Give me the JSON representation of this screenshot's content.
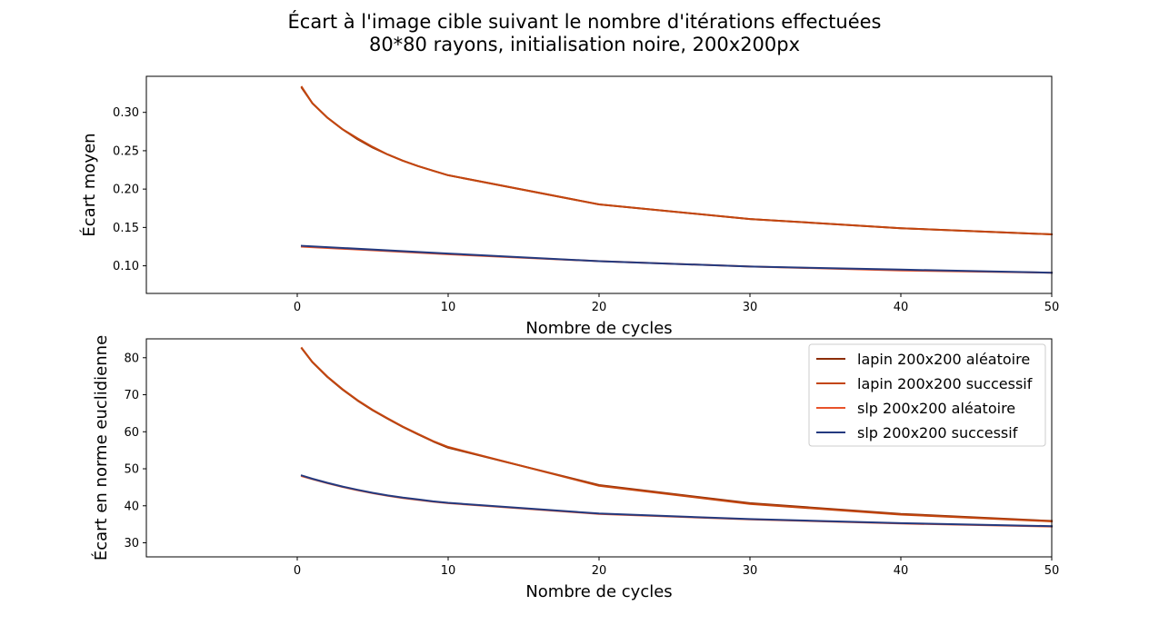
{
  "title": {
    "line1": "Écart à l'image cible suivant le nombre d'itérations effectuées",
    "line2": "80*80 rayons, initialisation noire, 200x200px"
  },
  "colors": {
    "lapin_aleatoire": "#8c2d04",
    "lapin_successif": "#c3460f",
    "slp_aleatoire": "#e8532a",
    "slp_successif": "#243a7f"
  },
  "chart_data": [
    {
      "type": "line",
      "xlabel": "Nombre de cycles",
      "ylabel": "Écart moyen",
      "xlim": [
        -10,
        50
      ],
      "ylim": [
        0.064,
        0.347
      ],
      "xticks": [
        0,
        10,
        20,
        30,
        40,
        50
      ],
      "yticks": [
        0.1,
        0.15,
        0.2,
        0.25,
        0.3
      ],
      "ytick_labels": [
        "0.10",
        "0.15",
        "0.20",
        "0.25",
        "0.30"
      ],
      "series": [
        {
          "name": "lapin 200x200 aléatoire",
          "color": "#8c2d04",
          "x": [
            0.3,
            1,
            2,
            3,
            4,
            5,
            6,
            7,
            8,
            9,
            10,
            20,
            30,
            40,
            50
          ],
          "y": [
            0.332,
            0.312,
            0.293,
            0.278,
            0.265,
            0.254,
            0.245,
            0.237,
            0.23,
            0.224,
            0.218,
            0.18,
            0.161,
            0.149,
            0.141
          ]
        },
        {
          "name": "lapin 200x200 successif",
          "color": "#c3460f",
          "x": [
            0.3,
            1,
            2,
            3,
            4,
            5,
            6,
            7,
            8,
            9,
            10,
            20,
            30,
            40,
            50
          ],
          "y": [
            0.333,
            0.312,
            0.293,
            0.278,
            0.266,
            0.255,
            0.245,
            0.237,
            0.23,
            0.224,
            0.218,
            0.18,
            0.161,
            0.149,
            0.141
          ]
        },
        {
          "name": "slp 200x200 aléatoire",
          "color": "#e8532a",
          "x": [
            0.3,
            10,
            20,
            30,
            40,
            50
          ],
          "y": [
            0.125,
            0.115,
            0.106,
            0.099,
            0.094,
            0.091
          ]
        },
        {
          "name": "slp 200x200 successif",
          "color": "#243a7f",
          "x": [
            0.3,
            10,
            20,
            30,
            40,
            50
          ],
          "y": [
            0.126,
            0.116,
            0.106,
            0.099,
            0.095,
            0.091
          ]
        }
      ]
    },
    {
      "type": "line",
      "xlabel": "Nombre de cycles",
      "ylabel": "Écart en norme euclidienne",
      "xlim": [
        -10,
        50
      ],
      "ylim": [
        26.2,
        85.1
      ],
      "xticks": [
        0,
        10,
        20,
        30,
        40,
        50
      ],
      "yticks": [
        30,
        40,
        50,
        60,
        70,
        80
      ],
      "ytick_labels": [
        "30",
        "40",
        "50",
        "60",
        "70",
        "80"
      ],
      "legend": "top-right",
      "series": [
        {
          "name": "lapin 200x200 aléatoire",
          "color": "#8c2d04",
          "x": [
            0.3,
            1,
            2,
            3,
            4,
            5,
            6,
            7,
            8,
            9,
            10,
            20,
            30,
            40,
            50
          ],
          "y": [
            82.5,
            78.8,
            74.8,
            71.4,
            68.4,
            65.8,
            63.5,
            61.3,
            59.3,
            57.4,
            55.7,
            45.6,
            40.7,
            37.8,
            35.9
          ]
        },
        {
          "name": "lapin 200x200 successif",
          "color": "#c3460f",
          "x": [
            0.3,
            1,
            2,
            3,
            4,
            5,
            6,
            7,
            8,
            9,
            10,
            20,
            30,
            40,
            50
          ],
          "y": [
            82.6,
            78.9,
            74.9,
            71.5,
            68.5,
            65.9,
            63.6,
            61.4,
            59.4,
            57.5,
            55.9,
            45.4,
            40.5,
            37.6,
            35.8
          ]
        },
        {
          "name": "slp 200x200 aléatoire",
          "color": "#e8532a",
          "x": [
            0.3,
            1,
            2,
            3,
            4,
            5,
            6,
            7,
            8,
            9,
            10,
            20,
            30,
            40,
            50
          ],
          "y": [
            48.0,
            47.2,
            46.1,
            45.1,
            44.2,
            43.4,
            42.7,
            42.1,
            41.6,
            41.1,
            40.7,
            37.8,
            36.3,
            35.2,
            34.4
          ]
        },
        {
          "name": "slp 200x200 successif",
          "color": "#243a7f",
          "x": [
            0.3,
            1,
            2,
            3,
            4,
            5,
            6,
            7,
            8,
            9,
            10,
            20,
            30,
            40,
            50
          ],
          "y": [
            48.2,
            47.3,
            46.2,
            45.2,
            44.3,
            43.5,
            42.8,
            42.2,
            41.7,
            41.2,
            40.8,
            37.9,
            36.4,
            35.3,
            34.5
          ]
        }
      ]
    }
  ]
}
